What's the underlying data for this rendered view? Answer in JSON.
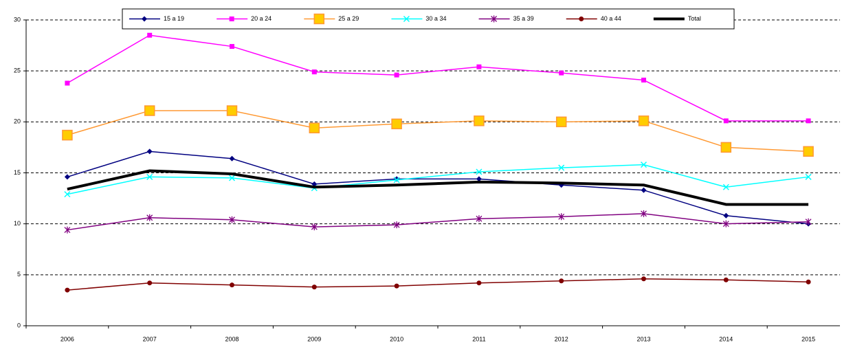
{
  "chart_data": {
    "type": "line",
    "categories": [
      "2006",
      "2007",
      "2008",
      "2009",
      "2010",
      "2011",
      "2012",
      "2013",
      "2014",
      "2015"
    ],
    "series": [
      {
        "name": "15 a 19",
        "color": "#000080",
        "marker": "diamond",
        "values": [
          14.6,
          17.1,
          16.4,
          13.9,
          14.4,
          14.4,
          13.8,
          13.3,
          10.8,
          10.0
        ]
      },
      {
        "name": "20 a 24",
        "color": "#ff00ff",
        "marker": "square",
        "values": [
          23.8,
          28.5,
          27.4,
          24.9,
          24.6,
          25.4,
          24.8,
          24.1,
          20.1,
          20.1
        ]
      },
      {
        "name": "25 a 29",
        "color": "#ff9933",
        "marker_fill": "#ffcc00",
        "marker": "big-square",
        "values": [
          18.7,
          21.1,
          21.1,
          19.4,
          19.8,
          20.1,
          20.0,
          20.1,
          17.5,
          17.1
        ]
      },
      {
        "name": "30 a 34",
        "color": "#00ffff",
        "marker": "x",
        "values": [
          12.9,
          14.6,
          14.5,
          13.5,
          14.3,
          15.1,
          15.5,
          15.8,
          13.6,
          14.6
        ]
      },
      {
        "name": "35 a 39",
        "color": "#800080",
        "marker": "star",
        "values": [
          9.4,
          10.6,
          10.4,
          9.7,
          9.9,
          10.5,
          10.7,
          11.0,
          10.0,
          10.2
        ]
      },
      {
        "name": "40 a 44",
        "color": "#800000",
        "marker": "circle",
        "values": [
          3.5,
          4.2,
          4.0,
          3.8,
          3.9,
          4.2,
          4.4,
          4.6,
          4.5,
          4.3
        ]
      },
      {
        "name": "Total",
        "color": "#000000",
        "line_width": 4,
        "values": [
          13.4,
          15.2,
          14.9,
          13.6,
          13.8,
          14.1,
          14.0,
          13.8,
          11.9,
          11.9
        ]
      }
    ],
    "ylim": [
      0,
      30
    ],
    "yticks": [
      0,
      5,
      10,
      15,
      20,
      25,
      30
    ],
    "grid": true,
    "legend": "top"
  }
}
